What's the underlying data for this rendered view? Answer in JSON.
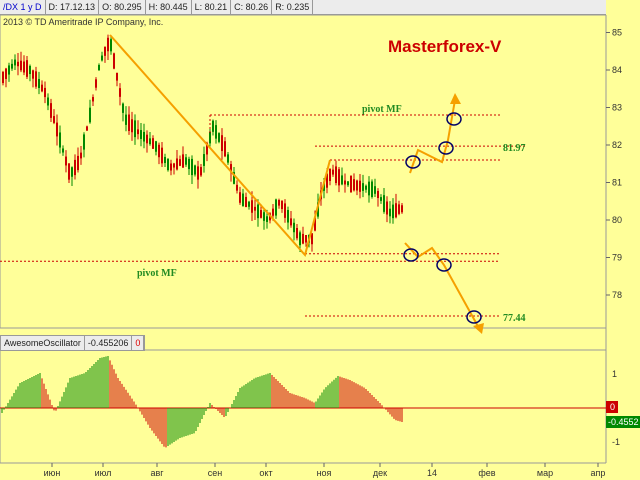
{
  "header": {
    "symbol": "/DX 1 y D",
    "date": "D: 17.12.13",
    "open": "O: 80.295",
    "high": "H: 80.445",
    "low": "L: 80.21",
    "close": "C: 80.26",
    "range": "R: 0.235"
  },
  "copyright": "2013 © TD Ameritrade IP Company, Inc.",
  "brand": "Masterforex-V",
  "indicator": {
    "name": "AwesomeOscillator",
    "value": "-0.455206",
    "flag": "0"
  },
  "colors": {
    "bg": "#ffff99",
    "up": "#008800",
    "down": "#cc0000",
    "trend": "#f5a000",
    "pivot": "#cc0000",
    "circle": "#000066"
  },
  "chart_data": [
    {
      "type": "candlestick",
      "y_ticks": [
        78,
        79,
        80,
        81,
        82,
        83,
        84,
        85
      ],
      "ylim": [
        77.2,
        85.3
      ],
      "x_ticks": [
        "июн",
        "июл",
        "авг",
        "сен",
        "окт",
        "ноя",
        "дек",
        "14",
        "фев",
        "мар",
        "апр"
      ],
      "pivots": [
        {
          "label": "pivot MF",
          "value": 82.8
        },
        {
          "label": "",
          "value": 81.97
        },
        {
          "label": "",
          "value": 81.6
        },
        {
          "label": "",
          "value": 79.1
        },
        {
          "label": "pivot MF",
          "value": 78.9
        },
        {
          "label": "",
          "value": 77.44
        }
      ],
      "level_labels": [
        "81.97",
        "77.44"
      ],
      "pivot_label_text": "pivot MF"
    },
    {
      "type": "bar",
      "name": "AwesomeOscillator",
      "y_ticks": [
        "1",
        "0",
        "-1"
      ],
      "last_value": "-0.4552"
    }
  ]
}
